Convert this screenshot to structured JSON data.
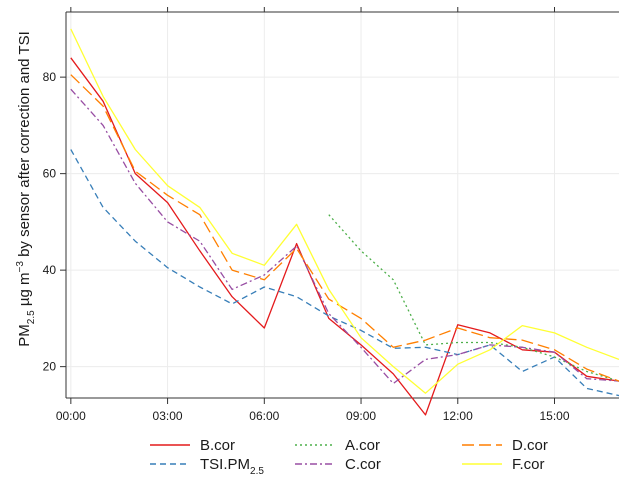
{
  "chart_data": {
    "type": "line",
    "ylabel": "PM2.5 µg m−3 by sensor after correction and TSI",
    "ylabel_parts": {
      "pm": "PM",
      "sub": "2.5",
      "unit": " µg m",
      "sup": "−3",
      "rest": " by sensor after correction and TSI"
    },
    "xlabel": "",
    "x_ticks": [
      "00:00",
      "03:00",
      "06:00",
      "09:00",
      "12:00",
      "15:00"
    ],
    "x_tick_values": [
      0,
      3,
      6,
      9,
      12,
      15
    ],
    "xlim": [
      -0.15,
      17.0
    ],
    "y_ticks": [
      20,
      40,
      60,
      80
    ],
    "ylim": [
      13.5,
      93.5
    ],
    "grid": true,
    "legend_position": "bottom",
    "series": [
      {
        "name": "B.cor",
        "color": "#e41a1c",
        "dash": "solid",
        "x": [
          0,
          1,
          2,
          3,
          4,
          5,
          6,
          7,
          8,
          9,
          10,
          11,
          12,
          13,
          14,
          15,
          16,
          17
        ],
        "values": [
          84,
          75,
          60,
          54,
          44,
          34.5,
          28,
          45.5,
          30,
          24.5,
          18.5,
          10,
          28.7,
          27,
          23.5,
          23,
          18,
          17
        ]
      },
      {
        "name": "TSI.PM2.5",
        "name_parts": {
          "base": "TSI.PM",
          "sub": "2.5"
        },
        "color": "#377eb8",
        "dash": "dashed",
        "x": [
          0,
          1,
          2,
          3,
          4,
          5,
          6,
          7,
          8,
          9,
          10,
          11,
          12,
          13,
          14,
          15,
          16,
          17
        ],
        "values": [
          65,
          53,
          46,
          40.5,
          36.5,
          33,
          36.5,
          34.5,
          30.5,
          27.5,
          23.8,
          24,
          22.5,
          24.5,
          19,
          22,
          15.5,
          14
        ]
      },
      {
        "name": "A.cor",
        "color": "#4daf4a",
        "dash": "dotted",
        "x": [
          8,
          9,
          10,
          11,
          12,
          13,
          14,
          15,
          16,
          17
        ],
        "values": [
          51.5,
          44,
          38,
          24.5,
          25,
          25,
          24,
          22,
          19,
          17
        ]
      },
      {
        "name": "C.cor",
        "color": "#984ea3",
        "dash": "dashdot",
        "x": [
          0,
          1,
          2,
          3,
          4,
          5,
          6,
          7,
          8,
          9,
          10,
          11,
          12,
          13,
          14,
          15,
          16,
          17
        ],
        "values": [
          77.5,
          70,
          58,
          50,
          46,
          36,
          39,
          45,
          31,
          24,
          16.5,
          21.5,
          22.5,
          24.5,
          24,
          23,
          17.5,
          17
        ]
      },
      {
        "name": "D.cor",
        "color": "#ff7f00",
        "dash": "longdash",
        "x": [
          0,
          1,
          2,
          3,
          4,
          5,
          6,
          7,
          8,
          9,
          10,
          11,
          12,
          13,
          14,
          15,
          16,
          17
        ],
        "values": [
          80.5,
          74,
          60.5,
          55.5,
          51.5,
          40,
          38,
          44.5,
          34,
          30,
          24,
          25.5,
          28,
          26,
          25.5,
          23.5,
          19.5,
          17
        ]
      },
      {
        "name": "F.cor",
        "color": "#ffff33",
        "dash": "solid",
        "x": [
          0,
          1,
          2,
          3,
          4,
          5,
          6,
          7,
          8,
          9,
          10,
          11,
          12,
          13,
          14,
          15,
          16,
          17
        ],
        "values": [
          90,
          76,
          65,
          57.5,
          53,
          43.5,
          41,
          49.5,
          36,
          26,
          20,
          14.5,
          20.5,
          23.5,
          28.5,
          27,
          24,
          21.5
        ]
      }
    ]
  }
}
